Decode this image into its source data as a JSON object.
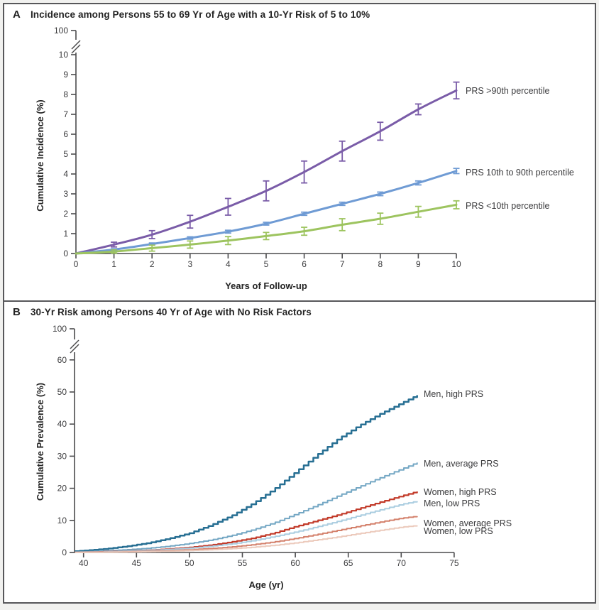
{
  "chart_data": [
    {
      "panel_label": "A",
      "type": "line",
      "title": "Incidence among Persons 55 to 69 Yr of Age with a 10-Yr Risk of 5 to 10%",
      "xlabel": "Years of Follow-up",
      "ylabel": "Cumulative Incidence (%)",
      "x": [
        0,
        1,
        2,
        3,
        4,
        5,
        6,
        7,
        8,
        9,
        10
      ],
      "x_ticks": [
        "0",
        "1",
        "2",
        "3",
        "4",
        "5",
        "6",
        "7",
        "8",
        "9",
        "10"
      ],
      "y_ticks": [
        "0",
        "1",
        "2",
        "3",
        "4",
        "5",
        "6",
        "7",
        "8",
        "9",
        "10"
      ],
      "y_axis_break": true,
      "y_top_tick_label": "100",
      "xlim": [
        0,
        10
      ],
      "ylim": [
        0,
        10
      ],
      "grid": false,
      "legend_position": "right-of-line-ends",
      "curve_style": "smooth",
      "error_bars": true,
      "series": [
        {
          "name": "PRS >90th percentile",
          "color": "#7a5ca8",
          "values": [
            0,
            0.45,
            0.95,
            1.6,
            2.35,
            3.15,
            4.1,
            5.15,
            6.15,
            7.25,
            8.2
          ],
          "error": [
            0,
            0.12,
            0.2,
            0.32,
            0.42,
            0.5,
            0.55,
            0.5,
            0.45,
            0.27,
            0.42
          ]
        },
        {
          "name": "PRS 10th to 90th percentile",
          "color": "#6f9bd4",
          "values": [
            0,
            0.2,
            0.48,
            0.78,
            1.1,
            1.5,
            2.0,
            2.5,
            3.0,
            3.55,
            4.15
          ],
          "error": [
            0,
            0.04,
            0.05,
            0.06,
            0.07,
            0.07,
            0.08,
            0.08,
            0.09,
            0.1,
            0.13
          ]
        },
        {
          "name": "PRS <10th percentile",
          "color": "#9dc45f",
          "values": [
            0,
            0.1,
            0.27,
            0.45,
            0.65,
            0.88,
            1.12,
            1.45,
            1.75,
            2.1,
            2.45
          ],
          "error": [
            0,
            0.08,
            0.15,
            0.18,
            0.2,
            0.18,
            0.2,
            0.3,
            0.28,
            0.27,
            0.2
          ]
        }
      ]
    },
    {
      "panel_label": "B",
      "type": "line",
      "title": "30-Yr Risk among Persons 40 Yr of Age with No Risk Factors",
      "xlabel": "Age (yr)",
      "ylabel": "Cumulative Prevalence (%)",
      "x": [
        39.2,
        40,
        42,
        44,
        46,
        48,
        50,
        52,
        54,
        56,
        58,
        60,
        62,
        64,
        66,
        68,
        70,
        71.5
      ],
      "x_ticks": [
        "40",
        "45",
        "50",
        "55",
        "60",
        "65",
        "70",
        "75"
      ],
      "y_ticks": [
        "0",
        "10",
        "20",
        "30",
        "40",
        "50",
        "60"
      ],
      "y_axis_break": true,
      "y_top_tick_label": "100",
      "xlim": [
        39,
        75
      ],
      "ylim": [
        0,
        60
      ],
      "grid": false,
      "legend_position": "right-of-line-ends",
      "curve_style": "step",
      "error_bars": false,
      "series": [
        {
          "name": "Men, high PRS",
          "color": "#276f93",
          "values": [
            0.4,
            0.6,
            1.1,
            1.9,
            2.9,
            4.3,
            6.0,
            8.5,
            11.5,
            15.3,
            19.8,
            25.0,
            30.3,
            35.3,
            39.5,
            43.2,
            46.5,
            49.0
          ]
        },
        {
          "name": "Men, average PRS",
          "color": "#74a7c4",
          "values": [
            0.15,
            0.25,
            0.5,
            0.85,
            1.3,
            1.95,
            2.8,
            3.9,
            5.3,
            7.1,
            9.3,
            11.9,
            14.7,
            17.6,
            20.5,
            23.3,
            26.0,
            28.0
          ]
        },
        {
          "name": "Women, high PRS",
          "color": "#c23b2a",
          "values": [
            0.05,
            0.1,
            0.25,
            0.45,
            0.7,
            1.1,
            1.6,
            2.3,
            3.3,
            4.5,
            6.1,
            8.1,
            9.9,
            11.7,
            13.7,
            15.7,
            17.6,
            19.0
          ]
        },
        {
          "name": "Men, low PRS",
          "color": "#aacde0",
          "values": [
            0.05,
            0.1,
            0.2,
            0.4,
            0.65,
            0.95,
            1.35,
            1.95,
            2.7,
            3.7,
            5.0,
            6.4,
            8.0,
            9.7,
            11.5,
            13.3,
            15.0,
            16.0
          ]
        },
        {
          "name": "Women, average PRS",
          "color": "#d4816c",
          "values": [
            0.02,
            0.05,
            0.12,
            0.22,
            0.38,
            0.58,
            0.85,
            1.25,
            1.75,
            2.45,
            3.3,
            4.4,
            5.6,
            6.9,
            8.2,
            9.5,
            10.7,
            11.3
          ]
        },
        {
          "name": "Women, low PRS",
          "color": "#eccabc",
          "values": [
            0.01,
            0.03,
            0.08,
            0.15,
            0.25,
            0.4,
            0.6,
            0.85,
            1.2,
            1.65,
            2.25,
            3.0,
            3.9,
            4.85,
            5.9,
            6.9,
            7.9,
            8.4
          ]
        }
      ]
    }
  ]
}
